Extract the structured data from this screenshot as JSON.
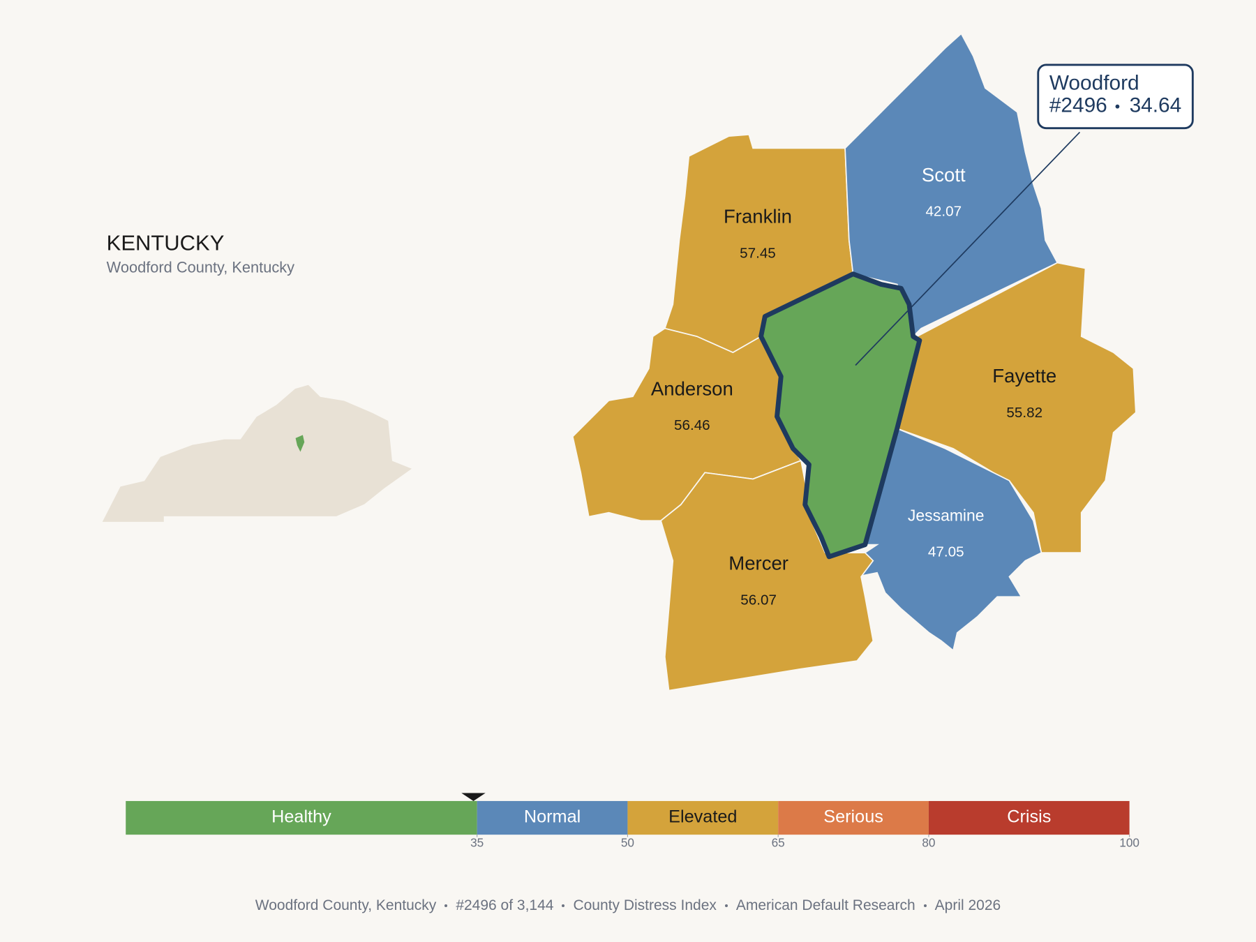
{
  "header": {
    "title": "KENTUCKY",
    "subtitle": "Woodford County, Kentucky"
  },
  "map": {
    "highlight": {
      "name": "Woodford",
      "rank": "#2496",
      "value": 34.64
    },
    "counties": [
      {
        "name": "Franklin",
        "value": 57.45
      },
      {
        "name": "Scott",
        "value": 42.07
      },
      {
        "name": "Anderson",
        "value": 56.46
      },
      {
        "name": "Fayette",
        "value": 55.82
      },
      {
        "name": "Jessamine",
        "value": 47.05
      },
      {
        "name": "Mercer",
        "value": 56.07
      }
    ]
  },
  "scale": {
    "lim": [
      0,
      100
    ],
    "segments": [
      {
        "label": "Healthy",
        "from": 0,
        "to": 35,
        "color": "#66a658"
      },
      {
        "label": "Normal",
        "from": 35,
        "to": 50,
        "color": "#5b88b8"
      },
      {
        "label": "Elevated",
        "from": 50,
        "to": 65,
        "color": "#d4a33b"
      },
      {
        "label": "Serious",
        "from": 65,
        "to": 80,
        "color": "#dc7a48"
      },
      {
        "label": "Crisis",
        "from": 80,
        "to": 100,
        "color": "#b93c2d"
      }
    ],
    "ticks": [
      35,
      50,
      65,
      80,
      100
    ],
    "marker": 34.64
  },
  "footer": {
    "items": [
      "Woodford County, Kentucky",
      "#2496 of 3,144",
      "County Distress Index",
      "American Default Research",
      "April 2026"
    ]
  }
}
